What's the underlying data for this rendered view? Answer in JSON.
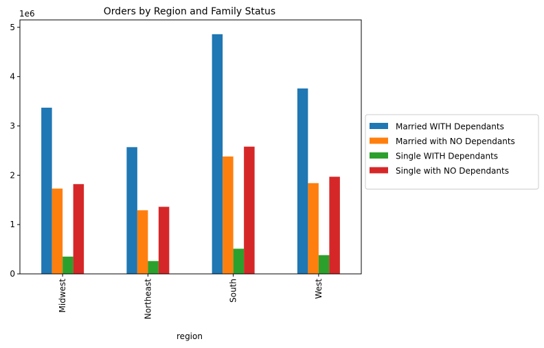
{
  "chart_data": {
    "type": "bar",
    "title": "Orders by Region and Family Status",
    "xlabel": "region",
    "ylabel": "",
    "y_offset_label": "1e6",
    "y_multiplier": 1000000,
    "ylim": [
      0,
      5.15
    ],
    "yticks": [
      "0",
      "1",
      "2",
      "3",
      "4",
      "5"
    ],
    "categories": [
      "Midwest",
      "Northeast",
      "South",
      "West"
    ],
    "series": [
      {
        "name": "Married WITH Dependants",
        "color": "#1f77b4",
        "values": [
          3.37,
          2.57,
          4.86,
          3.76
        ]
      },
      {
        "name": "Married with NO Dependants",
        "color": "#ff7f0e",
        "values": [
          1.73,
          1.29,
          2.38,
          1.84
        ]
      },
      {
        "name": "Single WITH Dependants",
        "color": "#2ca02c",
        "values": [
          0.35,
          0.26,
          0.51,
          0.38
        ]
      },
      {
        "name": "Single with NO Dependants",
        "color": "#d62728",
        "values": [
          1.82,
          1.36,
          2.58,
          1.97
        ]
      }
    ],
    "grid": false,
    "legend_position": "center-right outside"
  }
}
